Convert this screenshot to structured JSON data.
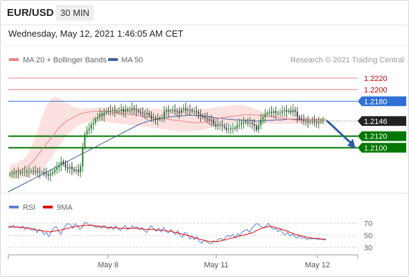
{
  "header": {
    "symbol": "EUR/USD",
    "timeframe": "30 MIN",
    "datetime": "Wednesday, May 12, 2021 1:46:05 AM CET"
  },
  "legend": {
    "ma20": "MA 20 + Bollinger Bands",
    "ma50": "MA 50",
    "rsi": "RSI",
    "ma9": "9MA",
    "credit": "Research © 2021 Trading Central"
  },
  "colors": {
    "candle_up": "#2e7d32",
    "candle_down": "#444444",
    "ma20": "#f08080",
    "bollinger_fill": "#fbdcdc",
    "ma50": "#3b5f9a",
    "support": "#007700",
    "resistance_red": "#f08080",
    "resistance_blue": "#2f6fd6",
    "current": "#222222",
    "arrow": "#2e5da8",
    "rsi": "#5b7fd6",
    "rsi_ma": "#e00000"
  },
  "chart_data": [
    {
      "type": "candlestick",
      "title": "EUR/USD 30 MIN",
      "x_tick_labels": [
        "May 8",
        "May 11",
        "May 12"
      ],
      "y_range": [
        1.203,
        1.224
      ],
      "levels": [
        {
          "value": 1.222,
          "label": "1.2220",
          "kind": "resistance",
          "color": "#cc0000"
        },
        {
          "value": 1.22,
          "label": "1.2200",
          "kind": "resistance",
          "color": "#cc0000"
        },
        {
          "value": 1.218,
          "label": "1.2180",
          "kind": "resistance",
          "color": "#2f6fd6"
        },
        {
          "value": 1.2146,
          "label": "1.2146",
          "kind": "current",
          "color": "#222222"
        },
        {
          "value": 1.212,
          "label": "1.2120",
          "kind": "support",
          "color": "#007700"
        },
        {
          "value": 1.21,
          "label": "1.2100",
          "kind": "support",
          "color": "#007700"
        }
      ],
      "close_series": [
        1.2054,
        1.2055,
        1.2056,
        1.2057,
        1.2058,
        1.2057,
        1.2058,
        1.2059,
        1.2058,
        1.2059,
        1.206,
        1.2059,
        1.206,
        1.2058,
        1.2057,
        1.2058,
        1.2056,
        1.2054,
        1.2052,
        1.2055,
        1.2058,
        1.2062,
        1.2066,
        1.207,
        1.2076,
        1.2072,
        1.2066,
        1.2064,
        1.2067,
        1.2063,
        1.206,
        1.2062,
        1.2058,
        1.2068,
        1.21,
        1.2123,
        1.213,
        1.2133,
        1.214,
        1.2143,
        1.215,
        1.2153,
        1.2158,
        1.2155,
        1.216,
        1.2163,
        1.2162,
        1.2164,
        1.2165,
        1.2163,
        1.2162,
        1.2163,
        1.2166,
        1.2162,
        1.2166,
        1.2164,
        1.2164,
        1.2168,
        1.2166,
        1.2164,
        1.2162,
        1.216,
        1.2159,
        1.2158,
        1.216,
        1.2156,
        1.215,
        1.215,
        1.2148,
        1.2151,
        1.215,
        1.2151,
        1.2162,
        1.2165,
        1.2163,
        1.2164,
        1.2165,
        1.2163,
        1.2162,
        1.216,
        1.2166,
        1.2168,
        1.2164,
        1.2166,
        1.2165,
        1.2163,
        1.2163,
        1.2161,
        1.2158,
        1.2155,
        1.2153,
        1.2151,
        1.2149,
        1.2148,
        1.2147,
        1.214,
        1.2137,
        1.214,
        1.214,
        1.2138,
        1.2135,
        1.2131,
        1.2132,
        1.2134,
        1.2134,
        1.2133,
        1.2139,
        1.214,
        1.2143,
        1.2145,
        1.2144,
        1.2142,
        1.2143,
        1.2141,
        1.2138,
        1.2131,
        1.2139,
        1.2149,
        1.2153,
        1.2158,
        1.216,
        1.2162,
        1.216,
        1.2163,
        1.216,
        1.2159,
        1.216,
        1.2163,
        1.2165,
        1.2162,
        1.2164,
        1.2161,
        1.2165,
        1.2162,
        1.2153,
        1.215,
        1.2148,
        1.2146,
        1.2146,
        1.2144,
        1.2145,
        1.2146,
        1.2144,
        1.2143,
        1.2145,
        1.2146,
        1.2146
      ],
      "ma50_series": [
        1.2024,
        1.2027,
        1.203,
        1.2033,
        1.2036,
        1.2039,
        1.2042,
        1.2045,
        1.2048,
        1.2051,
        1.2054,
        1.2057,
        1.206,
        1.2063,
        1.2066,
        1.2069,
        1.2072,
        1.2075,
        1.2078,
        1.2081,
        1.2084,
        1.2087,
        1.209,
        1.2093,
        1.2096,
        1.2099,
        1.2102,
        1.2105,
        1.2108,
        1.2111,
        1.2114,
        1.2117,
        1.212,
        1.2123,
        1.2126,
        1.2129,
        1.2132,
        1.2135,
        1.2138,
        1.2141,
        1.2143,
        1.2145,
        1.2147,
        1.2148,
        1.2149,
        1.215,
        1.2151,
        1.2152,
        1.2153,
        1.2154,
        1.2154,
        1.2155,
        1.2155,
        1.2156,
        1.2156,
        1.2156,
        1.2155,
        1.2155,
        1.2154,
        1.2154,
        1.2153,
        1.2152,
        1.2151,
        1.2151,
        1.215,
        1.2149,
        1.2149,
        1.2148,
        1.2148,
        1.2148,
        1.2147,
        1.2147,
        1.2147,
        1.2146,
        1.2146,
        1.2146,
        1.2147,
        1.2147,
        1.2147,
        1.2148,
        1.2148,
        1.2148,
        1.2149,
        1.2149,
        1.2149,
        1.2149,
        1.2149,
        1.2148,
        1.2148,
        1.2148,
        1.2148,
        1.2148,
        1.2148,
        1.2148,
        1.2148
      ],
      "ma20_series": [
        1.2056,
        1.2058,
        1.206,
        1.2063,
        1.2068,
        1.2075,
        1.2085,
        1.2095,
        1.2105,
        1.2115,
        1.2125,
        1.2135,
        1.2142,
        1.2148,
        1.2152,
        1.2156,
        1.2159,
        1.2161,
        1.2162,
        1.2163,
        1.2163,
        1.2163,
        1.2162,
        1.2161,
        1.216,
        1.2159,
        1.2158,
        1.2157,
        1.2156,
        1.2155,
        1.2154,
        1.2153,
        1.2152,
        1.2151,
        1.215,
        1.2149,
        1.2148,
        1.2147,
        1.2146,
        1.2145,
        1.2144,
        1.2143,
        1.2143,
        1.2144,
        1.2146,
        1.2148,
        1.215,
        1.2152,
        1.2153,
        1.2154,
        1.2155,
        1.2156,
        1.2157,
        1.2157,
        1.2157,
        1.2156,
        1.2155,
        1.2154,
        1.2153,
        1.2152,
        1.2151,
        1.215,
        1.2149,
        1.2148,
        1.2148,
        1.2148,
        1.2148,
        1.2148,
        1.2148,
        1.2148,
        1.2148
      ],
      "bb_upper_series": [
        1.207,
        1.2073,
        1.2076,
        1.208,
        1.2088,
        1.2105,
        1.2125,
        1.215,
        1.217,
        1.2183,
        1.2188,
        1.2186,
        1.218,
        1.2175,
        1.2171,
        1.2169,
        1.2168,
        1.2168,
        1.2168,
        1.2169,
        1.217,
        1.217,
        1.217,
        1.217,
        1.217,
        1.2169,
        1.2169,
        1.2169,
        1.2168,
        1.2168,
        1.2167,
        1.2167,
        1.2167,
        1.2167,
        1.2167,
        1.2167,
        1.2166,
        1.2166,
        1.2166,
        1.2166,
        1.2166,
        1.2166,
        1.2166,
        1.2167,
        1.2168,
        1.2169,
        1.217,
        1.2171,
        1.2172,
        1.2173,
        1.2174,
        1.2174,
        1.2173,
        1.2171,
        1.2168,
        1.2165,
        1.2162,
        1.216,
        1.2158,
        1.2156,
        1.2155,
        1.2155,
        1.2154,
        1.2154,
        1.2153,
        1.2153,
        1.2153,
        1.2152,
        1.2152,
        1.2152,
        1.2152
      ],
      "bb_lower_series": [
        1.2046,
        1.2046,
        1.2047,
        1.2048,
        1.205,
        1.2052,
        1.2056,
        1.2062,
        1.207,
        1.208,
        1.2092,
        1.2104,
        1.2115,
        1.2124,
        1.2131,
        1.2137,
        1.2141,
        1.2144,
        1.2146,
        1.2146,
        1.2146,
        1.2145,
        1.2144,
        1.2143,
        1.2142,
        1.2141,
        1.214,
        1.2139,
        1.2138,
        1.2137,
        1.2136,
        1.2135,
        1.2134,
        1.2133,
        1.2132,
        1.2131,
        1.213,
        1.2129,
        1.2128,
        1.2128,
        1.2128,
        1.2129,
        1.213,
        1.2131,
        1.2133,
        1.2135,
        1.2137,
        1.2139,
        1.214,
        1.2141,
        1.2142,
        1.2143,
        1.2143,
        1.2143,
        1.2143,
        1.2142,
        1.2142,
        1.2142,
        1.2141,
        1.2141,
        1.2141,
        1.2141,
        1.2141,
        1.2141,
        1.2141,
        1.2141,
        1.2141,
        1.2141,
        1.2141,
        1.2141,
        1.2141
      ],
      "forecast": {
        "from": 1.2146,
        "to": 1.21
      }
    },
    {
      "type": "line",
      "title": "RSI",
      "y_range": [
        20,
        80
      ],
      "y_tick_labels": [
        "70",
        "50",
        "30"
      ],
      "reference_lines": [
        70,
        50,
        30
      ],
      "series": [
        {
          "name": "RSI",
          "values": [
            66,
            64,
            67,
            63,
            65,
            62,
            66,
            60,
            64,
            61,
            58,
            62,
            55,
            60,
            57,
            52,
            55,
            48,
            56,
            62,
            65,
            58,
            52,
            60,
            66,
            70,
            68,
            62,
            70,
            66,
            60,
            64,
            72,
            71,
            66,
            68,
            65,
            63,
            66,
            62,
            67,
            63,
            61,
            65,
            60,
            66,
            62,
            58,
            63,
            67,
            60,
            62,
            66,
            62,
            64,
            60,
            63,
            58,
            55,
            62,
            66,
            60,
            57,
            62,
            56,
            63,
            58,
            54,
            60,
            55,
            52,
            58,
            50,
            47,
            55,
            53,
            44,
            49,
            43,
            48,
            40,
            37,
            42,
            40,
            37,
            36,
            41,
            39,
            44,
            45,
            42,
            47,
            50,
            48,
            52,
            46,
            53,
            50,
            56,
            58,
            60,
            55,
            62,
            66,
            70,
            68,
            65,
            62,
            66,
            70,
            64,
            60,
            62,
            56,
            60,
            54,
            51,
            55,
            49,
            52,
            48,
            46,
            50,
            45,
            47,
            43,
            45,
            44,
            45,
            44,
            43,
            44,
            43,
            43
          ]
        },
        {
          "name": "9MA",
          "values": [
            63,
            64,
            64,
            64,
            64,
            63,
            63,
            63,
            62,
            62,
            61,
            60,
            59,
            59,
            58,
            57,
            57,
            56,
            56,
            57,
            58,
            58,
            59,
            60,
            61,
            62,
            63,
            64,
            65,
            65,
            66,
            66,
            67,
            67,
            67,
            67,
            66,
            66,
            65,
            65,
            64,
            64,
            63,
            63,
            63,
            63,
            62,
            62,
            62,
            62,
            62,
            62,
            62,
            62,
            62,
            61,
            61,
            60,
            60,
            60,
            60,
            60,
            59,
            59,
            59,
            58,
            58,
            57,
            57,
            56,
            55,
            54,
            53,
            52,
            51,
            50,
            49,
            48,
            46,
            45,
            44,
            43,
            42,
            41,
            40,
            40,
            40,
            40,
            40,
            41,
            42,
            43,
            44,
            45,
            46,
            47,
            48,
            49,
            50,
            51,
            52,
            53,
            54,
            56,
            58,
            60,
            62,
            63,
            64,
            65,
            65,
            64,
            63,
            62,
            61,
            60,
            58,
            57,
            55,
            54,
            52,
            51,
            50,
            49,
            48,
            47,
            46,
            46,
            45,
            45,
            45,
            44,
            44,
            44
          ]
        }
      ]
    }
  ]
}
